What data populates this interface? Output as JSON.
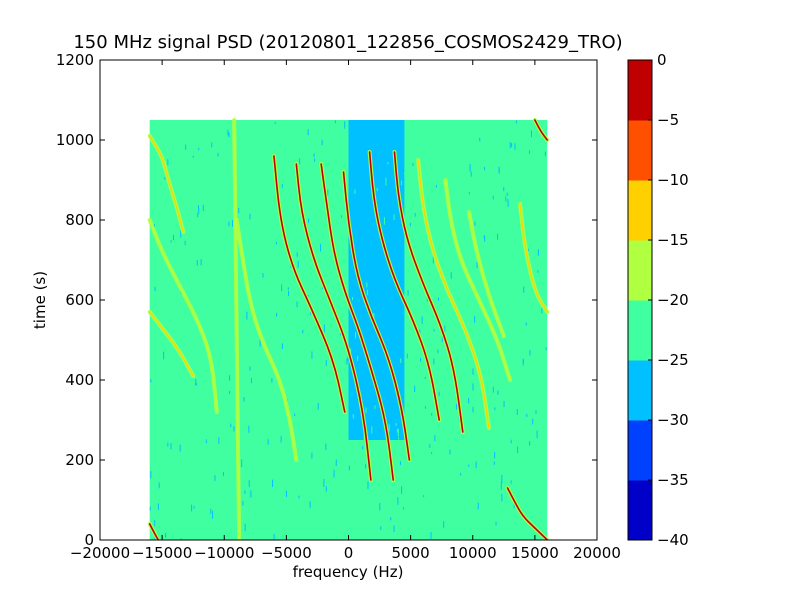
{
  "chart_data": {
    "type": "heatmap",
    "title": "150 MHz signal PSD (20120801_122856_COSMOS2429_TRO)",
    "xlabel": "frequency (Hz)",
    "ylabel": "time (s)",
    "xlim": [
      -20000,
      20000
    ],
    "ylim": [
      0,
      1200
    ],
    "xticks": [
      -20000,
      -15000,
      -10000,
      -5000,
      0,
      5000,
      10000,
      15000,
      20000
    ],
    "xtick_labels": [
      "−20000",
      "−15000",
      "−10000",
      "−5000",
      "0",
      "5000",
      "10000",
      "15000",
      "20000"
    ],
    "yticks": [
      0,
      200,
      400,
      600,
      800,
      1000,
      1200
    ],
    "ytick_labels": [
      "0",
      "200",
      "400",
      "600",
      "800",
      "1000",
      "1200"
    ],
    "data_extent": {
      "x": [
        -16000,
        16000
      ],
      "y": [
        0,
        1050
      ]
    },
    "grid": false,
    "colorbar": {
      "levels": [
        -40,
        -35,
        -30,
        -25,
        -20,
        -15,
        -10,
        -5,
        0
      ],
      "tick_labels": [
        "−40",
        "−35",
        "−30",
        "−25",
        "−20",
        "−15",
        "−10",
        "−5",
        "0"
      ],
      "colors": [
        "#0000c8",
        "#0040ff",
        "#00c0ff",
        "#40ffa0",
        "#b0ff40",
        "#ffd000",
        "#ff5000",
        "#c00000"
      ]
    },
    "background_level": -22.5,
    "noise_region": {
      "x": [
        0,
        4500
      ],
      "y": [
        250,
        1050
      ],
      "level": -27.5
    },
    "traces": [
      {
        "name": "s1",
        "points": [
          [
            -16000,
            1010
          ],
          [
            -15000,
            960
          ],
          [
            -14500,
            900
          ],
          [
            -13800,
            830
          ],
          [
            -13300,
            770
          ]
        ],
        "intensity": "medium"
      },
      {
        "name": "s2",
        "points": [
          [
            -16000,
            570
          ],
          [
            -15000,
            530
          ],
          [
            -14000,
            490
          ],
          [
            -13200,
            450
          ],
          [
            -12500,
            410
          ]
        ],
        "intensity": "medium"
      },
      {
        "name": "s3",
        "points": [
          [
            -16000,
            800
          ],
          [
            -15000,
            720
          ],
          [
            -13500,
            630
          ],
          [
            -12000,
            540
          ],
          [
            -11000,
            450
          ],
          [
            -10600,
            320
          ]
        ],
        "intensity": "low"
      },
      {
        "name": "s4",
        "points": [
          [
            -16000,
            40
          ],
          [
            -15500,
            10
          ],
          [
            -15300,
            0
          ]
        ],
        "intensity": "high"
      },
      {
        "name": "s5",
        "points": [
          [
            -9200,
            1050
          ],
          [
            -9000,
            500
          ],
          [
            -8800,
            0
          ]
        ],
        "intensity": "low"
      },
      {
        "name": "s6",
        "points": [
          [
            -9000,
            800
          ],
          [
            -8000,
            600
          ],
          [
            -7000,
            500
          ],
          [
            -5500,
            400
          ],
          [
            -4700,
            300
          ],
          [
            -4200,
            200
          ]
        ],
        "intensity": "low"
      },
      {
        "name": "s7",
        "points": [
          [
            -6000,
            960
          ],
          [
            -5500,
            800
          ],
          [
            -4500,
            680
          ],
          [
            -3000,
            580
          ],
          [
            -1200,
            450
          ],
          [
            -300,
            320
          ]
        ],
        "intensity": "high"
      },
      {
        "name": "s8",
        "points": [
          [
            -4200,
            940
          ],
          [
            -3800,
            820
          ],
          [
            -2800,
            700
          ],
          [
            -1500,
            600
          ],
          [
            0,
            480
          ],
          [
            1200,
            320
          ],
          [
            1800,
            150
          ]
        ],
        "intensity": "high"
      },
      {
        "name": "s9",
        "points": [
          [
            -2200,
            940
          ],
          [
            -1800,
            850
          ],
          [
            -1200,
            720
          ],
          [
            -300,
            620
          ],
          [
            800,
            530
          ],
          [
            1800,
            430
          ],
          [
            3000,
            300
          ],
          [
            3600,
            150
          ]
        ],
        "intensity": "high"
      },
      {
        "name": "s10",
        "points": [
          [
            -400,
            920
          ],
          [
            0,
            790
          ],
          [
            700,
            660
          ],
          [
            1800,
            560
          ],
          [
            3200,
            460
          ],
          [
            4300,
            330
          ],
          [
            4900,
            200
          ]
        ],
        "intensity": "high"
      },
      {
        "name": "s11",
        "points": [
          [
            1700,
            970
          ],
          [
            2000,
            860
          ],
          [
            2600,
            760
          ],
          [
            3700,
            650
          ],
          [
            5200,
            550
          ],
          [
            6500,
            440
          ],
          [
            7300,
            300
          ]
        ],
        "intensity": "high"
      },
      {
        "name": "s12",
        "points": [
          [
            3700,
            970
          ],
          [
            4000,
            860
          ],
          [
            4700,
            750
          ],
          [
            6000,
            640
          ],
          [
            7400,
            540
          ],
          [
            8500,
            430
          ],
          [
            9200,
            270
          ]
        ],
        "intensity": "high"
      },
      {
        "name": "s13",
        "points": [
          [
            5600,
            950
          ],
          [
            6000,
            830
          ],
          [
            6800,
            720
          ],
          [
            8000,
            620
          ],
          [
            9500,
            520
          ],
          [
            10700,
            410
          ],
          [
            11300,
            280
          ]
        ],
        "intensity": "medium"
      },
      {
        "name": "s14",
        "points": [
          [
            7800,
            900
          ],
          [
            8200,
            800
          ],
          [
            9000,
            700
          ],
          [
            10500,
            600
          ],
          [
            12000,
            500
          ],
          [
            13000,
            400
          ]
        ],
        "intensity": "low"
      },
      {
        "name": "s15",
        "points": [
          [
            9700,
            820
          ],
          [
            10300,
            720
          ],
          [
            11300,
            610
          ],
          [
            12500,
            510
          ]
        ],
        "intensity": "low"
      },
      {
        "name": "s16",
        "points": [
          [
            12800,
            130
          ],
          [
            13300,
            100
          ],
          [
            14000,
            60
          ],
          [
            15000,
            30
          ],
          [
            16000,
            0
          ]
        ],
        "intensity": "high"
      },
      {
        "name": "s17",
        "points": [
          [
            13800,
            840
          ],
          [
            14200,
            730
          ],
          [
            15000,
            620
          ],
          [
            16000,
            570
          ]
        ],
        "intensity": "medium"
      },
      {
        "name": "s18",
        "points": [
          [
            15000,
            1050
          ],
          [
            15500,
            1020
          ],
          [
            16000,
            1000
          ]
        ],
        "intensity": "high"
      }
    ]
  }
}
